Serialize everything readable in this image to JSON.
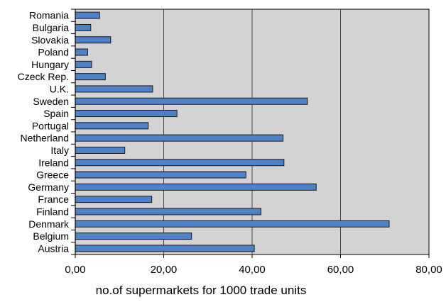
{
  "chart_data": {
    "type": "bar",
    "orientation": "horizontal",
    "categories": [
      "Romania",
      "Bulgaria",
      "Slovakia",
      "Poland",
      "Hungary",
      "Czeck Rep.",
      "U.K.",
      "Sweden",
      "Spain",
      "Portugal",
      "Netherland",
      "Italy",
      "Ireland",
      "Greece",
      "Germany",
      "France",
      "Finland",
      "Denmark",
      "Belgium",
      "Austria"
    ],
    "values": [
      5.5,
      3.5,
      8.0,
      2.8,
      3.7,
      6.8,
      17.5,
      52.5,
      23.0,
      16.5,
      47.0,
      11.2,
      47.2,
      38.6,
      54.5,
      17.3,
      42.0,
      71.0,
      26.3,
      40.5
    ],
    "xlabel": "no.of supermarkets for 1000 trade units",
    "xlim": [
      0,
      80
    ],
    "xticks": [
      0,
      20,
      40,
      60,
      80
    ],
    "xtick_labels": [
      "0,00",
      "20,00",
      "40,00",
      "60,00",
      "80,00"
    ],
    "grid": "vertical",
    "colors": {
      "bar": "#4f81c7",
      "plot_bg": "#d3d3d3",
      "bar_edge": "#1a1a1a"
    }
  }
}
